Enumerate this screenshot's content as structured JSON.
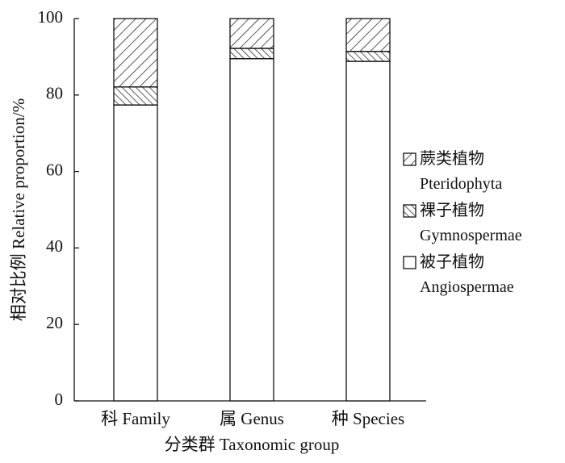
{
  "chart_data": {
    "type": "stacked_bar",
    "ylabel": "相对比例 Relative proportion/%",
    "xlabel": "分类群 Taxonomic group",
    "categories": [
      "科 Family",
      "属 Genus",
      "种 Species"
    ],
    "series": [
      {
        "name": "被子植物\nAngiospermae",
        "color": "#ffffff",
        "hatch": "none",
        "values": [
          77.4,
          89.5,
          88.8
        ]
      },
      {
        "name": "裸子植物\nGymnospermae",
        "color": "#ffffff",
        "hatch": "backslash",
        "values": [
          4.7,
          2.7,
          2.6
        ]
      },
      {
        "name": "蕨类植物\nPteridophyta",
        "color": "#ffffff",
        "hatch": "slash",
        "values": [
          17.9,
          7.8,
          8.6
        ]
      }
    ],
    "ylim": [
      0,
      100
    ],
    "yticks": [
      0,
      20,
      40,
      60,
      80,
      100
    ]
  }
}
